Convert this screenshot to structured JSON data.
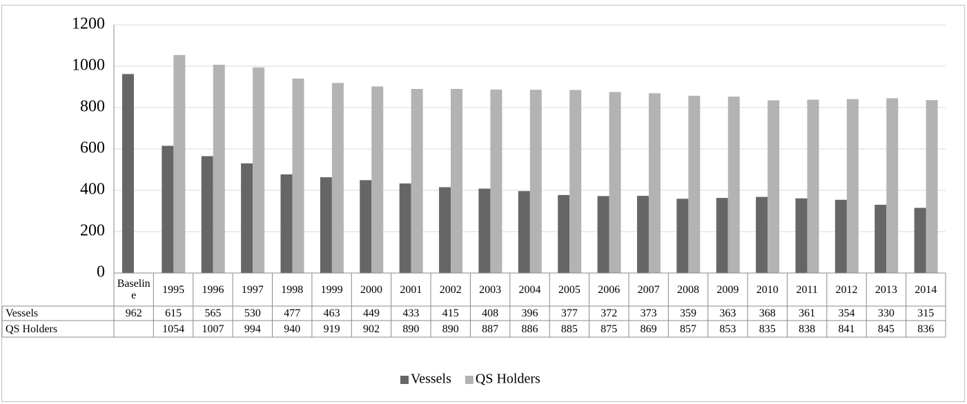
{
  "chart_data": {
    "type": "bar",
    "categories": [
      "Baseline",
      "1995",
      "1996",
      "1997",
      "1998",
      "1999",
      "2000",
      "2001",
      "2002",
      "2003",
      "2004",
      "2005",
      "2006",
      "2007",
      "2008",
      "2009",
      "2010",
      "2011",
      "2012",
      "2013",
      "2014"
    ],
    "series": [
      {
        "name": "Vessels",
        "color": "#666666",
        "values": [
          962,
          615,
          565,
          530,
          477,
          463,
          449,
          433,
          415,
          408,
          396,
          377,
          372,
          373,
          359,
          363,
          368,
          361,
          354,
          330,
          315
        ]
      },
      {
        "name": "QS Holders",
        "color": "#b3b3b3",
        "values": [
          null,
          1054,
          1007,
          994,
          940,
          919,
          902,
          890,
          890,
          887,
          886,
          885,
          875,
          869,
          857,
          853,
          835,
          838,
          841,
          845,
          836
        ]
      }
    ],
    "ylim": [
      0,
      1200
    ],
    "yticks": [
      0,
      200,
      400,
      600,
      800,
      1000,
      1200
    ],
    "grid": true,
    "legend": "bottom",
    "data_table": true
  }
}
